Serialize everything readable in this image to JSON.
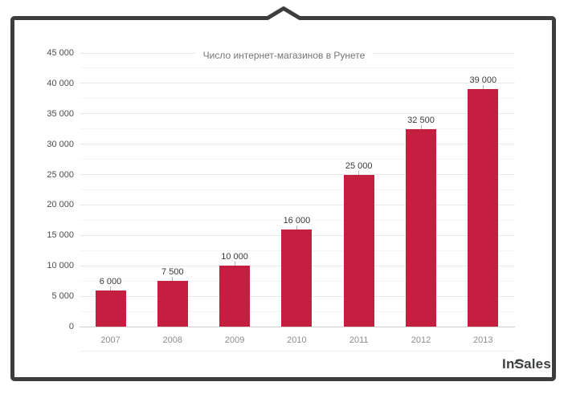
{
  "chart_data": {
    "type": "bar",
    "title": "Число интернет-магазинов в Рунете",
    "categories": [
      "2007",
      "2008",
      "2009",
      "2010",
      "2011",
      "2012",
      "2013"
    ],
    "values": [
      6000,
      7500,
      10000,
      16000,
      25000,
      32500,
      39000
    ],
    "value_labels": [
      "6 000",
      "7 500",
      "10 000",
      "16 000",
      "25 000",
      "32 500",
      "39 000"
    ],
    "ylim": [
      0,
      45000
    ],
    "y_major_step": 5000,
    "y_minor_step": 2500,
    "y_tick_labels": [
      "0",
      "5 000",
      "10 000",
      "15 000",
      "20 000",
      "25 000",
      "30 000",
      "35 000",
      "40 000",
      "45 000"
    ],
    "grid": "on",
    "legend": "none",
    "bar_color": "#c41f40"
  },
  "logo": {
    "prefix": "In",
    "accent_letter": "S",
    "suffix": "ales"
  },
  "colors": {
    "frame": "#3d3d3d",
    "title_text": "#757575",
    "y_tick_text": "#4d4d4d",
    "x_tick_text": "#8c8c8c",
    "value_label_text": "#3a3a3a",
    "grid_major": "#e9e9e9",
    "grid_minor": "#f5f5f5",
    "zero_line": "#cfcfcf",
    "leader_tick": "#b3b3b3",
    "logo_text": "#3e4142"
  }
}
